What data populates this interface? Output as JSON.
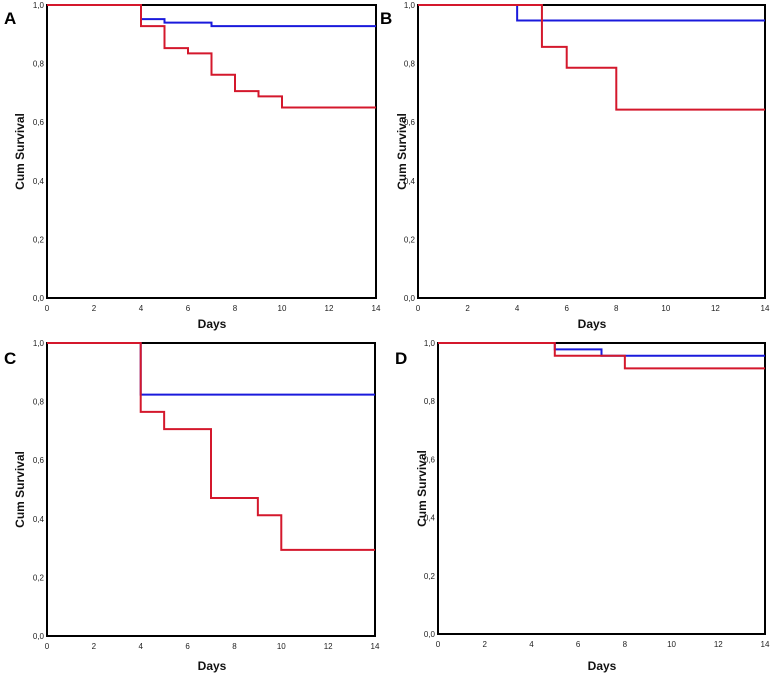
{
  "chart_data": [
    {
      "type": "line",
      "panel": "A",
      "xlabel": "Days",
      "ylabel": "Cum Survival",
      "xlim": [
        0,
        14
      ],
      "ylim": [
        0,
        1
      ],
      "xticks": [
        "0",
        "2",
        "4",
        "6",
        "8",
        "10",
        "12",
        "14"
      ],
      "yticks": [
        "0,0",
        "0,2",
        "0,4",
        "0,6",
        "0,8",
        "1,0"
      ],
      "series": [
        {
          "name": "blue",
          "color": "#1a1adc",
          "steps": [
            [
              0,
              1.0
            ],
            [
              4,
              0.952
            ],
            [
              5,
              0.94
            ],
            [
              7,
              0.928
            ],
            [
              14,
              0.928
            ]
          ]
        },
        {
          "name": "red",
          "color": "#d4182c",
          "steps": [
            [
              0,
              1.0
            ],
            [
              4,
              0.928
            ],
            [
              5,
              0.853
            ],
            [
              6,
              0.835
            ],
            [
              7,
              0.762
            ],
            [
              8,
              0.706
            ],
            [
              9,
              0.688
            ],
            [
              10,
              0.65
            ],
            [
              14,
              0.65
            ]
          ]
        }
      ]
    },
    {
      "type": "line",
      "panel": "B",
      "xlabel": "Days",
      "ylabel": "Cum Survival",
      "xlim": [
        0,
        14
      ],
      "ylim": [
        0,
        1
      ],
      "xticks": [
        "0",
        "2",
        "4",
        "6",
        "8",
        "10",
        "12",
        "14"
      ],
      "yticks": [
        "0,0",
        "0,2",
        "0,4",
        "0,6",
        "0,8",
        "1,0"
      ],
      "series": [
        {
          "name": "blue",
          "color": "#1a1adc",
          "steps": [
            [
              0,
              1.0
            ],
            [
              4,
              0.947
            ],
            [
              14,
              0.947
            ]
          ]
        },
        {
          "name": "red",
          "color": "#d4182c",
          "steps": [
            [
              0,
              1.0
            ],
            [
              5,
              0.857
            ],
            [
              6,
              0.786
            ],
            [
              8,
              0.643
            ],
            [
              14,
              0.643
            ]
          ]
        }
      ]
    },
    {
      "type": "line",
      "panel": "C",
      "xlabel": "Days",
      "ylabel": "Cum Survival",
      "xlim": [
        0,
        14
      ],
      "ylim": [
        0,
        1
      ],
      "xticks": [
        "0",
        "2",
        "4",
        "6",
        "8",
        "10",
        "12",
        "14"
      ],
      "yticks": [
        "0,0",
        "0,2",
        "0,4",
        "0,6",
        "0,8",
        "1,0"
      ],
      "series": [
        {
          "name": "blue",
          "color": "#1a1adc",
          "steps": [
            [
              0,
              1.0
            ],
            [
              4,
              0.824
            ],
            [
              14,
              0.824
            ]
          ]
        },
        {
          "name": "red",
          "color": "#d4182c",
          "steps": [
            [
              0,
              1.0
            ],
            [
              4,
              0.765
            ],
            [
              5,
              0.706
            ],
            [
              7,
              0.471
            ],
            [
              9,
              0.412
            ],
            [
              10,
              0.294
            ],
            [
              14,
              0.294
            ]
          ]
        }
      ]
    },
    {
      "type": "line",
      "panel": "D",
      "xlabel": "Days",
      "ylabel": "Cum Survival",
      "xlim": [
        0,
        14
      ],
      "ylim": [
        0,
        1
      ],
      "xticks": [
        "0",
        "2",
        "4",
        "6",
        "8",
        "10",
        "12",
        "14"
      ],
      "yticks": [
        "0,0",
        "0,2",
        "0,4",
        "0,6",
        "0,8",
        "1,0"
      ],
      "series": [
        {
          "name": "blue",
          "color": "#1a1adc",
          "steps": [
            [
              0,
              1.0
            ],
            [
              5,
              0.978
            ],
            [
              7,
              0.956
            ],
            [
              14,
              0.956
            ]
          ]
        },
        {
          "name": "red",
          "color": "#d4182c",
          "steps": [
            [
              0,
              1.0
            ],
            [
              5,
              0.956
            ],
            [
              8,
              0.913
            ],
            [
              14,
              0.913
            ]
          ]
        }
      ]
    }
  ]
}
